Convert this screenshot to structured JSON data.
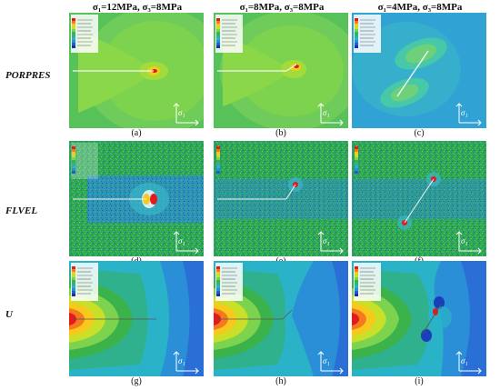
{
  "columns": [
    {
      "label": "σ₁=12MPa, σ₃=8MPa"
    },
    {
      "label": "σ₁=8MPa, σ₃=8MPa"
    },
    {
      "label": "σ₁=4MPa, σ₃=8MPa"
    }
  ],
  "rows": [
    {
      "label": "PORPRES"
    },
    {
      "label": "FLVEL"
    },
    {
      "label": "U"
    }
  ],
  "captions": [
    "(a)",
    "(b)",
    "(c)",
    "(d)",
    "(e)",
    "(f)",
    "(g)",
    "(h)",
    "(i)"
  ],
  "axis": {
    "sigma1": "σ₁",
    "sigma3": "σ₃"
  },
  "colors": {
    "contour_high": "#e41a1c",
    "contour_mid": "#3cb34a",
    "contour_low": "#1f78b4",
    "background_blue": "#2a8fd6"
  }
}
